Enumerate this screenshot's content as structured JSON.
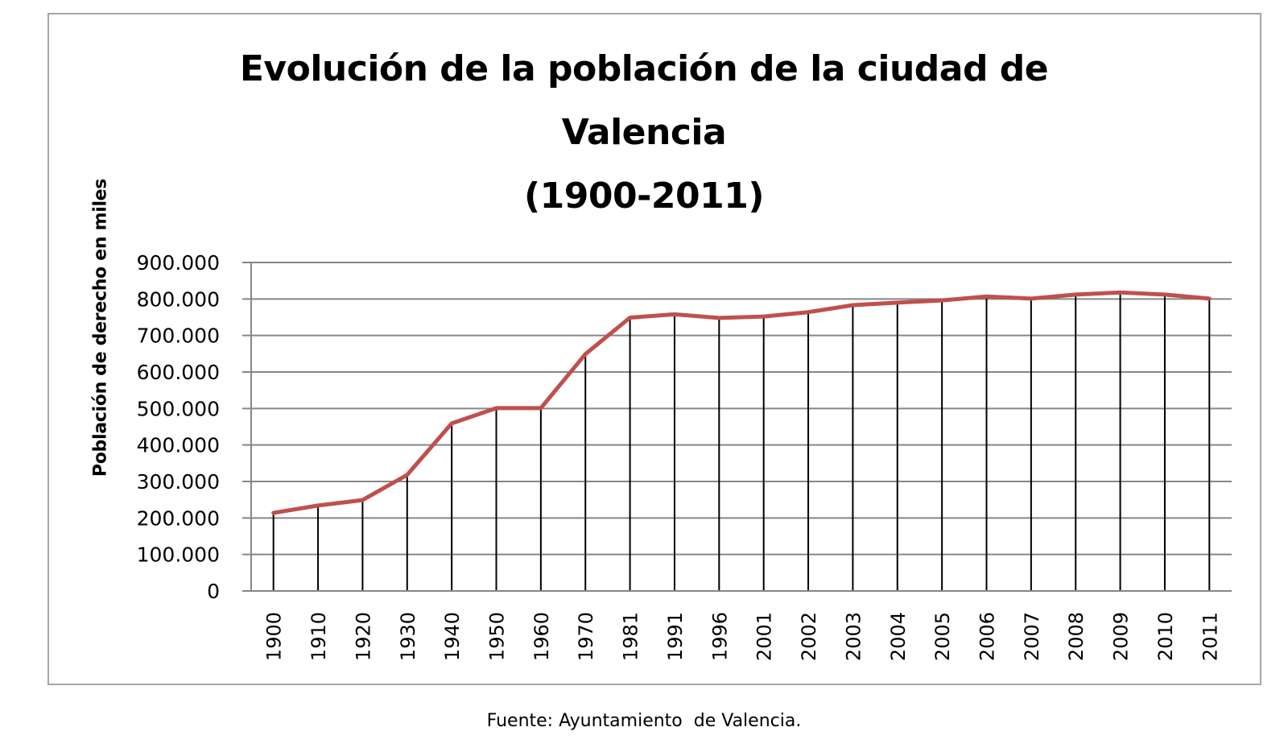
{
  "chart": {
    "title_lines": [
      "Evolución de la población de la ciudad de",
      "Valencia",
      "(1900-2011)"
    ],
    "ylabel": "Población de derecho en miles",
    "source": "Fuente: Ayuntamiento  de Valencia.",
    "line_color": "#C0504D",
    "grid_color": "#868686",
    "dropline_color": "#000000",
    "frame_color": "#A6A6A6"
  },
  "chart_data": {
    "type": "line",
    "title": "Evolución de la población de la ciudad de Valencia (1900-2011)",
    "xlabel": "",
    "ylabel": "Población de derecho en miles",
    "categories": [
      "1900",
      "1910",
      "1920",
      "1930",
      "1940",
      "1950",
      "1960",
      "1970",
      "1981",
      "1991",
      "1996",
      "2001",
      "2002",
      "2003",
      "2004",
      "2005",
      "2006",
      "2007",
      "2008",
      "2009",
      "2010",
      "2011"
    ],
    "series": [
      {
        "name": "Población",
        "values": [
          214000,
          234000,
          249000,
          318000,
          459000,
          501000,
          501000,
          649000,
          749000,
          758000,
          748000,
          752000,
          764000,
          783000,
          790000,
          796000,
          807000,
          801000,
          812000,
          818000,
          812000,
          801000
        ]
      }
    ],
    "ylim": [
      0,
      900000
    ],
    "yticks": [
      0,
      100000,
      200000,
      300000,
      400000,
      500000,
      600000,
      700000,
      800000,
      900000
    ],
    "ytick_labels": [
      "0",
      "100.000",
      "200.000",
      "300.000",
      "400.000",
      "500.000",
      "600.000",
      "700.000",
      "800.000",
      "900.000"
    ],
    "grid": "horizontal",
    "drop_lines": true,
    "legend": "none",
    "source": "Fuente: Ayuntamiento  de Valencia."
  }
}
